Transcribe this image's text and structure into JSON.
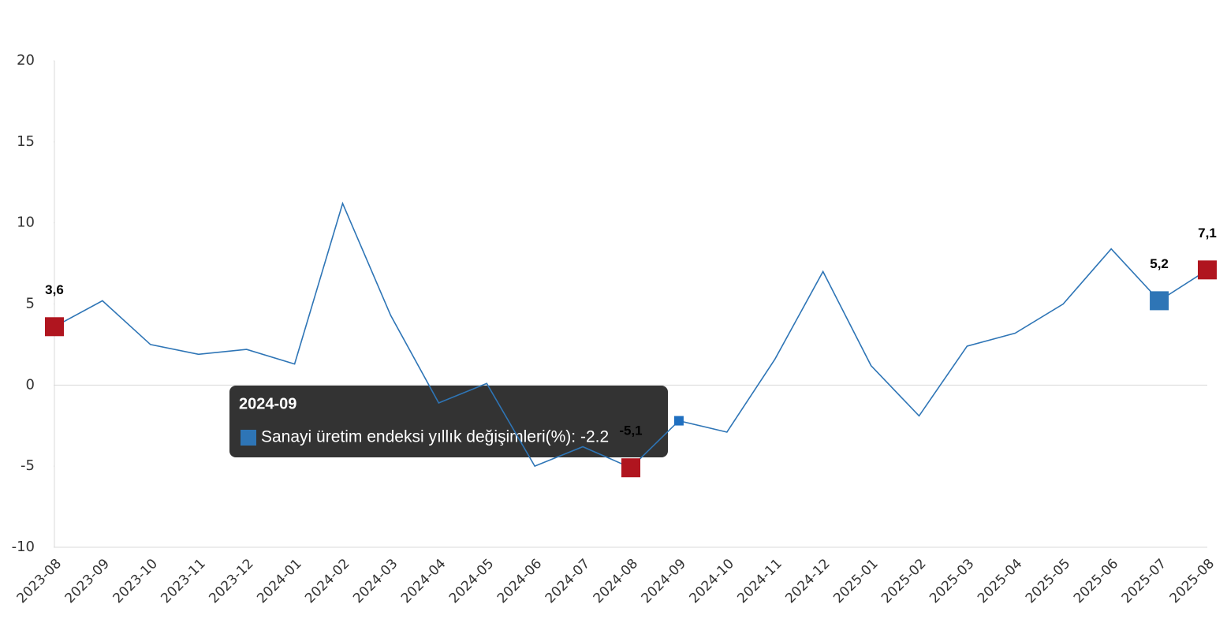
{
  "chart_data": {
    "type": "line",
    "x": [
      "2023-08",
      "2023-09",
      "2023-10",
      "2023-11",
      "2023-12",
      "2024-01",
      "2024-02",
      "2024-03",
      "2024-04",
      "2024-05",
      "2024-06",
      "2024-07",
      "2024-08",
      "2024-09",
      "2024-10",
      "2024-11",
      "2024-12",
      "2025-01",
      "2025-02",
      "2025-03",
      "2025-04",
      "2025-05",
      "2025-06",
      "2025-07",
      "2025-08"
    ],
    "series": [
      {
        "name": "Sanayi üretim endeksi yıllık değişimleri(%)",
        "color": "#2e75b6",
        "values": [
          3.6,
          5.2,
          2.5,
          1.9,
          2.2,
          1.3,
          11.2,
          4.3,
          -1.1,
          0.1,
          -5.0,
          -3.8,
          -5.1,
          -2.2,
          -2.9,
          1.6,
          7.0,
          1.2,
          -1.9,
          2.4,
          3.2,
          5.0,
          8.4,
          5.2,
          7.1
        ],
        "value_labels": [
          "3,6",
          null,
          null,
          null,
          null,
          null,
          null,
          null,
          null,
          null,
          null,
          null,
          "-5,1",
          null,
          null,
          null,
          null,
          null,
          null,
          null,
          null,
          null,
          null,
          "5,2",
          "7,1"
        ],
        "marker_colors": [
          "#b0151f",
          null,
          null,
          null,
          null,
          null,
          null,
          null,
          null,
          null,
          null,
          null,
          "#b0151f",
          null,
          null,
          null,
          null,
          null,
          null,
          null,
          null,
          null,
          null,
          "#2e75b6",
          "#b0151f"
        ]
      }
    ],
    "ylim": [
      -10,
      20
    ],
    "yticks": [
      -10,
      -5,
      0,
      5,
      10,
      15,
      20
    ],
    "grid": false,
    "tooltip": {
      "title": "2024-09",
      "text": "Sanayi üretim endeksi yıllık değişimleri(%): -2.2"
    }
  }
}
